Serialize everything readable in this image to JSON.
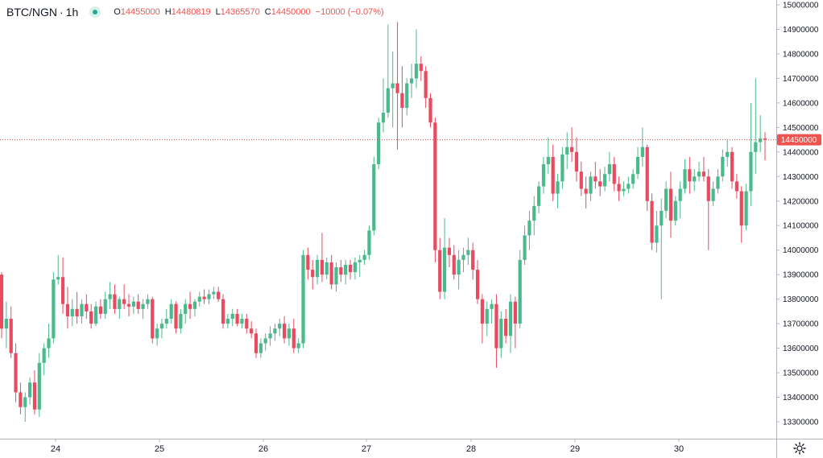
{
  "legend": {
    "symbol": "BTC/NGN",
    "separator": "·",
    "interval": "1h",
    "open_label": "O",
    "open": "14455000",
    "high_label": "H",
    "high": "14480819",
    "low_label": "L",
    "low": "14365570",
    "close_label": "C",
    "close": "14450000",
    "change": "−10000 (−0.07%)"
  },
  "colors": {
    "up": "#4cb98c",
    "down": "#e84a5f",
    "price_tag": "#ef5350",
    "axis_line": "#b2b5be",
    "text": "#131722"
  },
  "icons": {
    "settings": "gear-icon",
    "status": "live-dot-icon"
  },
  "chart_data": {
    "type": "candlestick",
    "symbol": "BTC/NGN",
    "interval": "1h",
    "ylim": [
      13250000,
      15020000
    ],
    "y_ticks": [
      "15000000",
      "14900000",
      "14800000",
      "14700000",
      "14600000",
      "14500000",
      "14400000",
      "14300000",
      "14200000",
      "14100000",
      "14000000",
      "13900000",
      "13800000",
      "13700000",
      "13600000",
      "13500000",
      "13400000",
      "13300000"
    ],
    "x_ticks": [
      "24",
      "25",
      "26",
      "27",
      "28",
      "29",
      "30"
    ],
    "current_price": "14450000",
    "candles": [
      [
        13900000,
        13910000,
        13640000,
        13680000
      ],
      [
        13680000,
        13790000,
        13600000,
        13720000
      ],
      [
        13720000,
        13770000,
        13560000,
        13580000
      ],
      [
        13580000,
        13620000,
        13380000,
        13420000
      ],
      [
        13420000,
        13460000,
        13330000,
        13360000
      ],
      [
        13360000,
        13420000,
        13300000,
        13400000
      ],
      [
        13400000,
        13480000,
        13370000,
        13460000
      ],
      [
        13460000,
        13510000,
        13330000,
        13350000
      ],
      [
        13350000,
        13580000,
        13320000,
        13540000
      ],
      [
        13540000,
        13620000,
        13490000,
        13600000
      ],
      [
        13600000,
        13700000,
        13560000,
        13640000
      ],
      [
        13640000,
        13910000,
        13620000,
        13880000
      ],
      [
        13880000,
        13980000,
        13860000,
        13890000
      ],
      [
        13890000,
        13970000,
        13740000,
        13780000
      ],
      [
        13780000,
        13850000,
        13680000,
        13730000
      ],
      [
        13730000,
        13800000,
        13690000,
        13760000
      ],
      [
        13760000,
        13830000,
        13700000,
        13730000
      ],
      [
        13730000,
        13800000,
        13700000,
        13780000
      ],
      [
        13780000,
        13820000,
        13720000,
        13750000
      ],
      [
        13750000,
        13780000,
        13680000,
        13700000
      ],
      [
        13700000,
        13790000,
        13690000,
        13770000
      ],
      [
        13770000,
        13800000,
        13720000,
        13740000
      ],
      [
        13740000,
        13830000,
        13720000,
        13800000
      ],
      [
        13800000,
        13870000,
        13760000,
        13820000
      ],
      [
        13820000,
        13860000,
        13740000,
        13760000
      ],
      [
        13760000,
        13810000,
        13720000,
        13800000
      ],
      [
        13800000,
        13860000,
        13760000,
        13780000
      ],
      [
        13780000,
        13820000,
        13730000,
        13770000
      ],
      [
        13770000,
        13810000,
        13740000,
        13790000
      ],
      [
        13790000,
        13820000,
        13740000,
        13760000
      ],
      [
        13760000,
        13800000,
        13720000,
        13780000
      ],
      [
        13780000,
        13820000,
        13760000,
        13800000
      ],
      [
        13800000,
        13810000,
        13620000,
        13640000
      ],
      [
        13640000,
        13700000,
        13610000,
        13680000
      ],
      [
        13680000,
        13720000,
        13640000,
        13700000
      ],
      [
        13700000,
        13760000,
        13680000,
        13720000
      ],
      [
        13720000,
        13800000,
        13700000,
        13780000
      ],
      [
        13780000,
        13790000,
        13660000,
        13680000
      ],
      [
        13680000,
        13760000,
        13660000,
        13740000
      ],
      [
        13740000,
        13800000,
        13700000,
        13780000
      ],
      [
        13780000,
        13830000,
        13720000,
        13760000
      ],
      [
        13760000,
        13800000,
        13730000,
        13790000
      ],
      [
        13790000,
        13830000,
        13770000,
        13810000
      ],
      [
        13810000,
        13840000,
        13780000,
        13800000
      ],
      [
        13800000,
        13840000,
        13780000,
        13820000
      ],
      [
        13820000,
        13850000,
        13800000,
        13830000
      ],
      [
        13830000,
        13850000,
        13790000,
        13800000
      ],
      [
        13800000,
        13820000,
        13680000,
        13700000
      ],
      [
        13700000,
        13740000,
        13680000,
        13720000
      ],
      [
        13720000,
        13760000,
        13690000,
        13740000
      ],
      [
        13740000,
        13760000,
        13690000,
        13700000
      ],
      [
        13700000,
        13740000,
        13680000,
        13720000
      ],
      [
        13720000,
        13740000,
        13660000,
        13680000
      ],
      [
        13680000,
        13710000,
        13640000,
        13660000
      ],
      [
        13660000,
        13680000,
        13560000,
        13580000
      ],
      [
        13580000,
        13640000,
        13560000,
        13620000
      ],
      [
        13620000,
        13660000,
        13590000,
        13640000
      ],
      [
        13640000,
        13690000,
        13610000,
        13660000
      ],
      [
        13660000,
        13700000,
        13630000,
        13680000
      ],
      [
        13680000,
        13720000,
        13650000,
        13700000
      ],
      [
        13700000,
        13730000,
        13620000,
        13640000
      ],
      [
        13640000,
        13700000,
        13610000,
        13680000
      ],
      [
        13680000,
        13720000,
        13580000,
        13600000
      ],
      [
        13600000,
        13640000,
        13580000,
        13620000
      ],
      [
        13620000,
        14000000,
        13600000,
        13980000
      ],
      [
        13980000,
        14010000,
        13880000,
        13920000
      ],
      [
        13920000,
        13960000,
        13840000,
        13890000
      ],
      [
        13890000,
        13980000,
        13860000,
        13960000
      ],
      [
        13960000,
        14070000,
        13870000,
        13900000
      ],
      [
        13900000,
        13970000,
        13880000,
        13950000
      ],
      [
        13950000,
        13980000,
        13840000,
        13860000
      ],
      [
        13860000,
        13950000,
        13830000,
        13930000
      ],
      [
        13930000,
        13960000,
        13870000,
        13900000
      ],
      [
        13900000,
        13960000,
        13860000,
        13940000
      ],
      [
        13940000,
        13960000,
        13880000,
        13910000
      ],
      [
        13910000,
        13970000,
        13880000,
        13950000
      ],
      [
        13950000,
        13980000,
        13890000,
        13960000
      ],
      [
        13960000,
        14000000,
        13940000,
        13980000
      ],
      [
        13980000,
        14100000,
        13960000,
        14080000
      ],
      [
        14080000,
        14380000,
        14060000,
        14350000
      ],
      [
        14350000,
        14540000,
        14330000,
        14520000
      ],
      [
        14520000,
        14700000,
        14480000,
        14560000
      ],
      [
        14560000,
        14920000,
        14540000,
        14660000
      ],
      [
        14660000,
        14810000,
        14500000,
        14680000
      ],
      [
        14680000,
        14930000,
        14410000,
        14640000
      ],
      [
        14640000,
        14750000,
        14500000,
        14580000
      ],
      [
        14580000,
        14700000,
        14550000,
        14680000
      ],
      [
        14680000,
        14760000,
        14620000,
        14700000
      ],
      [
        14700000,
        14900000,
        14660000,
        14760000
      ],
      [
        14760000,
        14790000,
        14690000,
        14730000
      ],
      [
        14730000,
        14750000,
        14580000,
        14620000
      ],
      [
        14620000,
        14640000,
        14500000,
        14520000
      ],
      [
        14520000,
        14540000,
        13950000,
        14000000
      ],
      [
        14000000,
        14050000,
        13800000,
        13830000
      ],
      [
        13830000,
        14130000,
        13800000,
        14010000
      ],
      [
        14010000,
        14050000,
        13930000,
        13980000
      ],
      [
        13980000,
        14020000,
        13880000,
        13900000
      ],
      [
        13900000,
        14000000,
        13840000,
        13960000
      ],
      [
        13960000,
        14010000,
        13910000,
        13980000
      ],
      [
        13980000,
        14050000,
        13940000,
        14000000
      ],
      [
        14000000,
        14030000,
        13880000,
        13920000
      ],
      [
        13920000,
        13960000,
        13780000,
        13800000
      ],
      [
        13800000,
        13820000,
        13620000,
        13700000
      ],
      [
        13700000,
        13790000,
        13650000,
        13760000
      ],
      [
        13760000,
        13800000,
        13700000,
        13780000
      ],
      [
        13780000,
        13820000,
        13520000,
        13600000
      ],
      [
        13600000,
        13750000,
        13560000,
        13720000
      ],
      [
        13720000,
        13760000,
        13620000,
        13650000
      ],
      [
        13650000,
        13820000,
        13580000,
        13790000
      ],
      [
        13790000,
        13810000,
        13600000,
        13700000
      ],
      [
        13700000,
        14000000,
        13680000,
        13960000
      ],
      [
        13960000,
        14100000,
        13940000,
        14060000
      ],
      [
        14060000,
        14160000,
        14000000,
        14120000
      ],
      [
        14120000,
        14220000,
        14060000,
        14180000
      ],
      [
        14180000,
        14280000,
        14150000,
        14260000
      ],
      [
        14260000,
        14380000,
        14230000,
        14350000
      ],
      [
        14350000,
        14460000,
        14310000,
        14380000
      ],
      [
        14380000,
        14430000,
        14200000,
        14230000
      ],
      [
        14230000,
        14310000,
        14170000,
        14280000
      ],
      [
        14280000,
        14420000,
        14250000,
        14390000
      ],
      [
        14390000,
        14480000,
        14330000,
        14420000
      ],
      [
        14420000,
        14500000,
        14360000,
        14400000
      ],
      [
        14400000,
        14460000,
        14280000,
        14320000
      ],
      [
        14320000,
        14360000,
        14220000,
        14250000
      ],
      [
        14250000,
        14300000,
        14170000,
        14230000
      ],
      [
        14230000,
        14320000,
        14200000,
        14300000
      ],
      [
        14300000,
        14360000,
        14250000,
        14280000
      ],
      [
        14280000,
        14330000,
        14220000,
        14260000
      ],
      [
        14260000,
        14340000,
        14240000,
        14310000
      ],
      [
        14310000,
        14400000,
        14280000,
        14350000
      ],
      [
        14350000,
        14380000,
        14240000,
        14270000
      ],
      [
        14270000,
        14300000,
        14200000,
        14240000
      ],
      [
        14240000,
        14280000,
        14220000,
        14250000
      ],
      [
        14250000,
        14300000,
        14230000,
        14270000
      ],
      [
        14270000,
        14330000,
        14250000,
        14310000
      ],
      [
        14310000,
        14420000,
        14290000,
        14380000
      ],
      [
        14380000,
        14500000,
        14340000,
        14420000
      ],
      [
        14420000,
        14430000,
        14160000,
        14200000
      ],
      [
        14200000,
        14230000,
        14000000,
        14030000
      ],
      [
        14030000,
        14160000,
        13990000,
        14100000
      ],
      [
        14100000,
        14210000,
        13800000,
        14160000
      ],
      [
        14160000,
        14280000,
        14130000,
        14250000
      ],
      [
        14250000,
        14320000,
        14050000,
        14120000
      ],
      [
        14120000,
        14220000,
        14100000,
        14200000
      ],
      [
        14200000,
        14280000,
        14130000,
        14250000
      ],
      [
        14250000,
        14370000,
        14230000,
        14330000
      ],
      [
        14330000,
        14380000,
        14230000,
        14280000
      ],
      [
        14280000,
        14330000,
        14240000,
        14300000
      ],
      [
        14300000,
        14360000,
        14280000,
        14320000
      ],
      [
        14320000,
        14380000,
        14280000,
        14300000
      ],
      [
        14300000,
        14330000,
        14000000,
        14200000
      ],
      [
        14200000,
        14280000,
        14180000,
        14250000
      ],
      [
        14250000,
        14330000,
        14230000,
        14300000
      ],
      [
        14300000,
        14410000,
        14280000,
        14380000
      ],
      [
        14380000,
        14450000,
        14340000,
        14400000
      ],
      [
        14400000,
        14420000,
        14250000,
        14280000
      ],
      [
        14280000,
        14310000,
        14210000,
        14240000
      ],
      [
        14240000,
        14260000,
        14030000,
        14100000
      ],
      [
        14100000,
        14270000,
        14080000,
        14240000
      ],
      [
        14240000,
        14600000,
        14180000,
        14400000
      ],
      [
        14400000,
        14700000,
        14310000,
        14440000
      ],
      [
        14440000,
        14550000,
        14400000,
        14455000
      ],
      [
        14455000,
        14480819,
        14365570,
        14450000
      ]
    ]
  }
}
